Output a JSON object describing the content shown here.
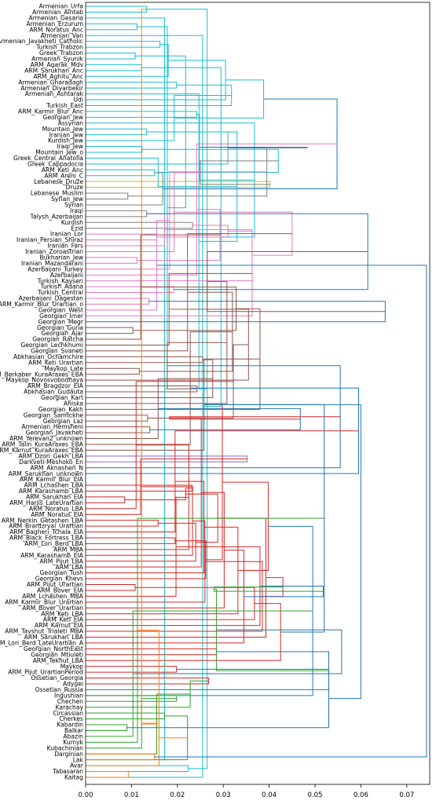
{
  "chart_data": {
    "type": "dendrogram",
    "orientation": "left",
    "xlim": [
      0,
      0.075
    ],
    "xticks": [
      "0.00",
      "0.01",
      "0.02",
      "0.03",
      "0.04",
      "0.05",
      "0.06",
      "0.07"
    ],
    "xtick_values": [
      0,
      0.01,
      0.02,
      0.03,
      0.04,
      0.05,
      0.06,
      0.07
    ],
    "grid": false,
    "colors": {
      "cyan": "#17becf",
      "olive": "#bcbd22",
      "gray": "#7f7f7f",
      "pink": "#e377c2",
      "brown": "#8c564b",
      "purple": "#9467bd",
      "red": "#d62728",
      "green": "#2ca02c",
      "orange": "#ff7f0e",
      "blue": "#1f77b4"
    },
    "leaves": [
      "Armenian_Urfa",
      "Armenian_Aintab",
      "Armenian_Gesaria",
      "Armenian_Erzurum",
      "ARM_Noratus_Anc",
      "Armenian_Van",
      "Armenian_Javakheti_Catholic",
      "Turkish_Trabzon",
      "Greek_Trabzon",
      "Armenian_Syunik",
      "ARM_Agarak_Mdv",
      "ARM_Sarukhan_Anc",
      "ARM_Aghitu_Anc",
      "Armenian_Gharadagh",
      "Armenian_Diyarbekir",
      "Armenian_Ashtarak",
      "Udi",
      "Turkish_East",
      "ARM_Karmir_Blur_Anc",
      "Georgian_Jew",
      "Assyrian",
      "Mountain_Jew",
      "Iranian_Jew",
      "Kurdish_Jew",
      "Iraqi_Jew",
      "Mountain_Jew_o",
      "Greek_Central_Anatolia",
      "Greek_Cappadocia",
      "ARM_Keti_Anc",
      "ARM_Areni_C",
      "Lebanese_Druze",
      "Druze",
      "Lebanese_Muslim",
      "Syrian_Jew",
      "Syrian",
      "Iraqi",
      "Talysh_Azerbaijan",
      "Kurdish",
      "Ezid",
      "Iranian_Lor",
      "Iranian_Persian_Shiraz",
      "Iranian_Fars",
      "Iranian_Zoroastrian",
      "Bukharian_Jew",
      "Iranian_Mazandarani",
      "Azerbaijani_Turkey",
      "Azerbaijani",
      "Turkish_Kayseri",
      "Turkish_Adana",
      "Turkish_Central",
      "Azerbaijani_Dagestan",
      "ARM_Karmir_Blur_Urartian_o",
      "Georgian_West",
      "Georgian_Imer",
      "Georgian_Megr",
      "Georgian_Guria",
      "Georgian_Ajar",
      "Georgian_Ratcha",
      "Georgian_Lechkhumi",
      "Georgian_Svaneti",
      "Abkhasian_Ochamchire",
      "ARM_Keti_Urartian",
      "Maykop_Late",
      "ARM_Berkaber_KuraAraxes_EBA",
      "Maykop_Novosvobodnaya",
      "ARM_Bragdzor_EIA",
      "Abkhasian_Gudauta",
      "Georgian_Kart",
      "Ahiska",
      "Georgian_Kakh",
      "Georgian_Samtckhe",
      "Georgian_Laz",
      "Armenian_Hemsheni",
      "Georgian_Javakheti",
      "ARM_Yerevan2_unknown",
      "ARM_Talin_KuraAraxes_EBA",
      "ARM_Karnut_KuraAraxes_EBA",
      "ARM_Dzori_Gekh_LBA",
      "Darkveti-Meshoko_En",
      "ARM_Aknashen_N",
      "ARM_Sarukhan_unknown",
      "ARM_Karmir_Blur_EIA",
      "ARM_Lchashen_LBA",
      "ARM_Karashamb_LBA",
      "ARM_Sarukhan_EIA",
      "ARM_Harjis_LateUrartian",
      "ARM_Noratus_LBA",
      "ARM_Noratus_EIA",
      "ARM_Nerkin_Getashen_LBA",
      "ARM_Brardzryal_Urartian",
      "ARM_Bagheri_Tchala_EIA",
      "ARM_Black_Fortress_LBA",
      "ARM_Lori_Berd_LBA",
      "ARM_MBA",
      "ARM_Karashamb_EIA",
      "ARM_Pijut_LBA",
      "ARM_LBA",
      "Georgian_Tush",
      "Georgian_Khevs",
      "ARM_Pijut_Urartian",
      "ARM_Bover_EIA",
      "ARM_Lchashen_MBA",
      "ARM_Karmir_Blur_Urartian",
      "ARM_Bover_Urartian",
      "ARM_Keti_LBA",
      "ARM_Keti_EIA",
      "ARM_Karnut_EIA",
      "ARM_Tavshut_Trialeti_MBA",
      "ARM_Sarukhan_LBA",
      "ARM_Lori_Berd_LateUrartian_A",
      "Georgian_NorthEast",
      "Georgian_Mtiuleti",
      "ARM_Tekhut_LBA",
      "Maykop",
      "ARM_Pijut_UrartianPeriod",
      "Ossetian_Georgia",
      "Adygei",
      "Ossetian_Russia",
      "Ingushian",
      "Chechen",
      "Karachay",
      "Circassian",
      "Cherkes",
      "Kabardin",
      "Balkar",
      "Abazin",
      "Kumyk",
      "Kubachinian",
      "Darginian",
      "Lak",
      "Avar",
      "Tabasaran",
      "Kaitag"
    ],
    "merges": [
      [
        0,
        1,
        0.0133,
        "cyan"
      ],
      [
        129,
        2,
        0.0172,
        "cyan"
      ],
      [
        3,
        4,
        0.0112,
        "cyan"
      ],
      [
        130,
        131,
        0.0224,
        "cyan"
      ],
      [
        132,
        5,
        0.0255,
        "cyan"
      ],
      [
        6,
        7,
        0.0162,
        "cyan"
      ],
      [
        8,
        9,
        0.0108,
        "cyan"
      ],
      [
        134,
        135,
        0.0178,
        "cyan"
      ],
      [
        133,
        136,
        0.0265,
        "cyan"
      ],
      [
        10,
        11,
        0.0122,
        "cyan"
      ],
      [
        138,
        12,
        0.018,
        "cyan"
      ],
      [
        13,
        14,
        0.0198,
        "cyan"
      ],
      [
        139,
        140,
        0.0218,
        "cyan"
      ],
      [
        141,
        15,
        0.0247,
        "cyan"
      ],
      [
        137,
        142,
        0.0295,
        "cyan"
      ],
      [
        143,
        16,
        0.0305,
        "cyan"
      ],
      [
        144,
        17,
        0.0318,
        "cyan"
      ],
      [
        18,
        19,
        0.0242,
        "cyan"
      ],
      [
        145,
        146,
        0.033,
        "cyan"
      ],
      [
        147,
        20,
        0.0368,
        "cyan"
      ],
      [
        21,
        22,
        0.0133,
        "cyan"
      ],
      [
        149,
        23,
        0.0193,
        "cyan"
      ],
      [
        24,
        25,
        0.0123,
        "cyan"
      ],
      [
        151,
        26,
        0.0158,
        "cyan"
      ],
      [
        150,
        152,
        0.0248,
        "cyan"
      ],
      [
        153,
        27,
        0.031,
        "cyan"
      ],
      [
        148,
        154,
        0.0388,
        "cyan"
      ],
      [
        28,
        29,
        0.015,
        "cyan"
      ],
      [
        155,
        156,
        0.042,
        "cyan"
      ],
      [
        30,
        31,
        0.0402,
        "olive"
      ],
      [
        157,
        158,
        0.0483,
        "blue"
      ],
      [
        32,
        33,
        0.0092,
        "gray"
      ],
      [
        160,
        34,
        0.0168,
        "gray"
      ],
      [
        35,
        36,
        0.0133,
        "gray"
      ],
      [
        161,
        162,
        0.025,
        "gray"
      ],
      [
        37,
        38,
        0.0233,
        "gray"
      ],
      [
        163,
        164,
        0.0395,
        "gray"
      ],
      [
        159,
        165,
        0.0548,
        "blue"
      ],
      [
        39,
        40,
        0.0155,
        "pink"
      ],
      [
        166,
        41,
        0.0172,
        "pink"
      ],
      [
        167,
        42,
        0.0193,
        "pink"
      ],
      [
        43,
        44,
        0.0112,
        "pink"
      ],
      [
        169,
        45,
        0.0183,
        "pink"
      ],
      [
        170,
        46,
        0.0242,
        "pink"
      ],
      [
        168,
        171,
        0.031,
        "pink"
      ],
      [
        172,
        47,
        0.0363,
        "pink"
      ],
      [
        48,
        49,
        0.0192,
        "pink"
      ],
      [
        50,
        51,
        0.0138,
        "pink"
      ],
      [
        175,
        52,
        0.0155,
        "pink"
      ],
      [
        174,
        176,
        0.0293,
        "pink"
      ],
      [
        177,
        53,
        0.0363,
        "pink"
      ],
      [
        173,
        178,
        0.045,
        "pink"
      ],
      [
        166,
        179,
        0.0615,
        "blue"
      ],
      [
        180,
        54,
        0.0653,
        "blue"
      ],
      [
        55,
        56,
        0.0103,
        "brown"
      ],
      [
        182,
        57,
        0.012,
        "brown"
      ],
      [
        183,
        58,
        0.0182,
        "brown"
      ],
      [
        184,
        59,
        0.0222,
        "brown"
      ],
      [
        60,
        61,
        0.0255,
        "brown"
      ],
      [
        185,
        186,
        0.0265,
        "brown"
      ],
      [
        62,
        63,
        0.0117,
        "brown"
      ],
      [
        188,
        187,
        0.0328,
        "brown"
      ],
      [
        189,
        64,
        0.0355,
        "brown"
      ],
      [
        65,
        66,
        0.0243,
        "brown"
      ],
      [
        191,
        67,
        0.0277,
        "brown"
      ],
      [
        192,
        68,
        0.0308,
        "brown"
      ],
      [
        190,
        193,
        0.032,
        "brown"
      ],
      [
        194,
        69,
        0.038,
        "brown"
      ],
      [
        70,
        71,
        0.0135,
        "brown"
      ],
      [
        72,
        73,
        0.014,
        "brown"
      ],
      [
        197,
        74,
        0.0158,
        "brown"
      ],
      [
        196,
        198,
        0.0178,
        "brown"
      ],
      [
        199,
        75,
        0.0228,
        "brown"
      ],
      [
        200,
        76,
        0.0258,
        "brown"
      ],
      [
        195,
        201,
        0.0322,
        "brown"
      ],
      [
        77,
        78,
        0.0352,
        "purple"
      ],
      [
        202,
        203,
        0.0468,
        "blue"
      ],
      [
        204,
        79,
        0.0555,
        "blue"
      ],
      [
        205,
        80,
        0.0595,
        "blue"
      ],
      [
        82,
        83,
        0.0232,
        "red"
      ],
      [
        84,
        85,
        0.0085,
        "red"
      ],
      [
        207,
        86,
        0.011,
        "red"
      ],
      [
        208,
        87,
        0.012,
        "red"
      ],
      [
        88,
        89,
        0.0158,
        "red"
      ],
      [
        209,
        210,
        0.0183,
        "red"
      ],
      [
        211,
        90,
        0.0195,
        "red"
      ],
      [
        91,
        92,
        0.0195,
        "red"
      ],
      [
        212,
        213,
        0.0218,
        "red"
      ],
      [
        214,
        93,
        0.0225,
        "red"
      ],
      [
        215,
        94,
        0.0233,
        "red"
      ],
      [
        216,
        95,
        0.024,
        "red"
      ],
      [
        217,
        96,
        0.0252,
        "red"
      ],
      [
        218,
        97,
        0.0258,
        "red"
      ],
      [
        219,
        98,
        0.0262,
        "red"
      ],
      [
        99,
        100,
        0.0108,
        "red"
      ],
      [
        221,
        101,
        0.0197,
        "red"
      ],
      [
        222,
        102,
        0.026,
        "red"
      ],
      [
        220,
        223,
        0.0288,
        "red"
      ],
      [
        224,
        103,
        0.0302,
        "red"
      ],
      [
        225,
        104,
        0.0332,
        "red"
      ],
      [
        206,
        226,
        0.0298,
        "red"
      ],
      [
        227,
        105,
        0.0368,
        "red"
      ],
      [
        228,
        106,
        0.038,
        "red"
      ],
      [
        229,
        107,
        0.0385,
        "red"
      ],
      [
        230,
        108,
        0.0393,
        "red"
      ],
      [
        231,
        109,
        0.0345,
        "red"
      ],
      [
        110,
        111,
        0.0285,
        "red"
      ],
      [
        232,
        233,
        0.0398,
        "red"
      ],
      [
        234,
        112,
        0.0425,
        "red"
      ],
      [
        113,
        114,
        0.0198,
        "red"
      ],
      [
        115,
        116,
        0.0268,
        "red"
      ],
      [
        236,
        237,
        0.043,
        "red"
      ],
      [
        235,
        238,
        0.0518,
        "blue"
      ],
      [
        239,
        117,
        0.053,
        "blue"
      ],
      [
        240,
        118,
        0.0495,
        "blue"
      ],
      [
        206,
        241,
        0.052,
        "blue"
      ],
      [
        118,
        119,
        0.0198,
        "green"
      ],
      [
        243,
        120,
        0.0228,
        "green"
      ],
      [
        121,
        122,
        0.0172,
        "green"
      ],
      [
        244,
        245,
        0.028,
        "green"
      ],
      [
        123,
        124,
        0.009,
        "green"
      ],
      [
        247,
        125,
        0.0103,
        "green"
      ],
      [
        248,
        126,
        0.0113,
        "green"
      ],
      [
        249,
        127,
        0.0122,
        "green"
      ],
      [
        250,
        128,
        0.0155,
        "green"
      ],
      [
        251,
        129,
        0.0222,
        "green"
      ],
      [
        246,
        252,
        0.0285,
        "green"
      ],
      [
        242,
        253,
        0.053,
        "blue"
      ],
      [
        128,
        129,
        0.015,
        "orange"
      ],
      [
        255,
        130,
        0.016,
        "orange"
      ],
      [
        131,
        132,
        0.0093,
        "orange"
      ],
      [
        257,
        133,
        0.0122,
        "orange"
      ],
      [
        256,
        258,
        0.016,
        "orange"
      ],
      [
        254,
        259,
        0.0558,
        "blue"
      ],
      [
        206,
        260,
        0.06,
        "blue"
      ],
      [
        181,
        261,
        0.0743,
        "blue"
      ]
    ]
  }
}
